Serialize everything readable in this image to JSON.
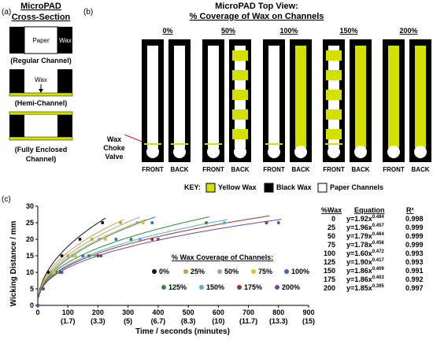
{
  "panel_a": {
    "label": "(a)",
    "title_line1": "MicroPAD",
    "title_line2": "Cross-Section",
    "paper_label": "Paper",
    "wax_label": "Wax",
    "wax_arrow_label": "Wax",
    "regular_caption": "(Regular Channel)",
    "hemi_caption": "(Hemi-Channel)",
    "enclosed_caption_line1": "(Fully Enclosed",
    "enclosed_caption_line2": "Channel)"
  },
  "panel_b": {
    "label": "(b)",
    "title_line1": "MicroPAD Top View:",
    "title_line2": "% Coverage of Wax on Channels",
    "choke_line1": "Wax",
    "choke_line2": "Choke",
    "choke_line3": "Valve",
    "groups": [
      {
        "label": "0%",
        "front": "FRONT",
        "back": "BACK",
        "front_pattern": "none",
        "back_pattern": "none"
      },
      {
        "label": "50%",
        "front": "FRONT",
        "back": "BACK",
        "front_pattern": "none",
        "back_pattern": "blocks"
      },
      {
        "label": "100%",
        "front": "FRONT",
        "back": "BACK",
        "front_pattern": "none",
        "back_pattern": "full"
      },
      {
        "label": "150%",
        "front": "FRONT",
        "back": "BACK",
        "front_pattern": "blocks",
        "back_pattern": "full"
      },
      {
        "label": "200%",
        "front": "FRONT",
        "back": "BACK",
        "front_pattern": "full",
        "back_pattern": "full"
      }
    ],
    "key_label": "KEY:",
    "key_items": [
      {
        "label": "Yellow Wax",
        "color": "#d4e000"
      },
      {
        "label": "Black Wax",
        "color": "#000000"
      },
      {
        "label": "Paper Channels",
        "color": "#ffffff"
      }
    ]
  },
  "panel_c": {
    "label": "(c)",
    "legend_title": "% Wax Coverage of Channels:",
    "table_headers": {
      "wax": "%Wax",
      "equation": "Equation",
      "r2": "R²"
    },
    "table_rows": [
      {
        "wax": "0",
        "eq_base": "y=1.92x",
        "eq_exp": "0.484",
        "r2": "0.998"
      },
      {
        "wax": "25",
        "eq_base": "y=1.96x",
        "eq_exp": "0.457",
        "r2": "0.999"
      },
      {
        "wax": "50",
        "eq_base": "y=1.79x",
        "eq_exp": "0.464",
        "r2": "0.999"
      },
      {
        "wax": "75",
        "eq_base": "y=1.78x",
        "eq_exp": "0.456",
        "r2": "0.999"
      },
      {
        "wax": "100",
        "eq_base": "y=1.60x",
        "eq_exp": "0.472",
        "r2": "0.993"
      },
      {
        "wax": "125",
        "eq_base": "y=1.90x",
        "eq_exp": "0.417",
        "r2": "0.993"
      },
      {
        "wax": "150",
        "eq_base": "y=1.86x",
        "eq_exp": "0.409",
        "r2": "0.991"
      },
      {
        "wax": "175",
        "eq_base": "y=1.86x",
        "eq_exp": "0.403",
        "r2": "0.992"
      },
      {
        "wax": "200",
        "eq_base": "y=1.85x",
        "eq_exp": "0.395",
        "r2": "0.997"
      }
    ]
  },
  "chart_data": {
    "type": "scatter",
    "title": "",
    "xlabel": "Time / seconds (minutes)",
    "ylabel": "Wicking Distance / mm",
    "xlim": [
      0,
      900
    ],
    "ylim": [
      0,
      30
    ],
    "x_ticks": [
      0,
      100,
      200,
      300,
      400,
      500,
      600,
      700,
      800,
      900
    ],
    "x_tick_labels": [
      "0",
      "100",
      "200",
      "300",
      "400",
      "500",
      "600",
      "700",
      "800",
      "900"
    ],
    "x_tick_sublabels": [
      "",
      "(1.7)",
      "(3.3)",
      "(5)",
      "(6.7)",
      "(8.3)",
      "(10)",
      "(11.7)",
      "(13.3)",
      "(15)"
    ],
    "y_ticks": [
      0,
      5,
      10,
      15,
      20,
      25,
      30
    ],
    "grid": false,
    "legend_placement": "bottom-right",
    "series": [
      {
        "name": "0%",
        "color": "#111111",
        "a": 1.92,
        "b": 0.484,
        "x": [
          0,
          10,
          35,
          80,
          140,
          215
        ],
        "y": [
          0,
          5,
          10,
          15,
          20,
          25
        ]
      },
      {
        "name": "25%",
        "color": "#c8a040",
        "a": 1.96,
        "b": 0.457,
        "x": [
          0,
          12,
          45,
          100,
          180,
          275
        ],
        "y": [
          0,
          5,
          10,
          15,
          20,
          25
        ]
      },
      {
        "name": "50%",
        "color": "#9aa4a8",
        "a": 1.79,
        "b": 0.464,
        "x": [
          0,
          14,
          50,
          115,
          205,
          330
        ],
        "y": [
          0,
          5,
          10,
          15,
          20,
          25
        ]
      },
      {
        "name": "75%",
        "color": "#d2c820",
        "a": 1.78,
        "b": 0.456,
        "x": [
          0,
          15,
          55,
          125,
          225,
          350
        ],
        "y": [
          0,
          5,
          10,
          15,
          20,
          25
        ]
      },
      {
        "name": "100%",
        "color": "#3a6dc0",
        "a": 1.6,
        "b": 0.472,
        "x": [
          0,
          18,
          65,
          150,
          260,
          380
        ],
        "y": [
          0,
          5,
          10,
          15,
          20,
          25
        ]
      },
      {
        "name": "125%",
        "color": "#2f8a3c",
        "a": 1.9,
        "b": 0.417,
        "x": [
          0,
          15,
          65,
          170,
          310,
          560
        ],
        "y": [
          0,
          5,
          10,
          15,
          20,
          25
        ]
      },
      {
        "name": "150%",
        "color": "#4fb0d8",
        "a": 1.86,
        "b": 0.409,
        "x": [
          0,
          16,
          70,
          190,
          340,
          620
        ],
        "y": [
          0,
          5,
          10,
          15,
          20,
          25
        ]
      },
      {
        "name": "175%",
        "color": "#a03028",
        "a": 1.86,
        "b": 0.403,
        "x": [
          0,
          17,
          75,
          200,
          380,
          760
        ],
        "y": [
          0,
          5,
          10,
          15,
          20,
          25
        ]
      },
      {
        "name": "200%",
        "color": "#6a48a8",
        "a": 1.85,
        "b": 0.395,
        "x": [
          0,
          18,
          80,
          210,
          400,
          800
        ],
        "y": [
          0,
          5,
          10,
          15,
          20,
          25
        ]
      }
    ]
  }
}
